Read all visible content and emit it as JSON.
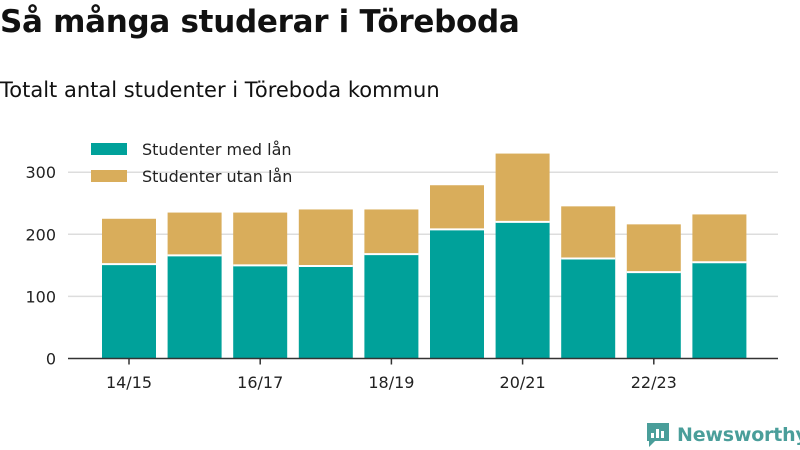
{
  "title": "Så många studerar i Töreboda",
  "subtitle": "Totalt antal studenter i Töreboda kommun",
  "brand": {
    "name": "Newsworthy",
    "color": "#4a9e9a",
    "icon": "newsworthy-logo-icon"
  },
  "colors": {
    "with_loan": "#00a19a",
    "without_loan": "#d9ad5b",
    "grid": "#dddddd",
    "axis": "#333333"
  },
  "chart_data": {
    "type": "bar",
    "stacked": true,
    "categories": [
      "14/15",
      "15/16",
      "16/17",
      "17/18",
      "18/19",
      "19/20",
      "20/21",
      "21/22",
      "22/23",
      "23/24"
    ],
    "x_tick_labels": [
      "14/15",
      "16/17",
      "18/19",
      "20/21",
      "22/23"
    ],
    "series": [
      {
        "name": "Studenter med lån",
        "color": "#00a19a",
        "values": [
          152,
          166,
          150,
          149,
          168,
          208,
          220,
          161,
          139,
          155
        ]
      },
      {
        "name": "Studenter utan lån",
        "color": "#d9ad5b",
        "values": [
          73,
          69,
          85,
          91,
          72,
          71,
          110,
          84,
          77,
          77
        ]
      }
    ],
    "y_ticks": [
      0,
      100,
      200,
      300
    ],
    "ylim": [
      0,
      345
    ],
    "grid": true,
    "legend_position": "top-left",
    "title": "Så många studerar i Töreboda",
    "subtitle": "Totalt antal studenter i Töreboda kommun"
  }
}
